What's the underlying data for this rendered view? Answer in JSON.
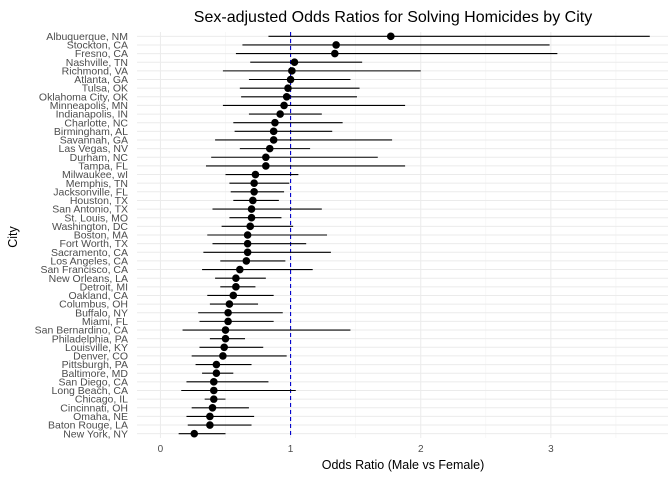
{
  "chart_data": {
    "type": "scatter",
    "subtype": "point-range (forest plot)",
    "title": "Sex-adjusted Odds Ratios for Solving Homicides by City",
    "xlabel": "Odds Ratio (Male vs Female)",
    "ylabel": "City",
    "xlim": [
      -0.18,
      3.9
    ],
    "xticks": [
      0,
      1,
      2,
      3
    ],
    "reference_line": {
      "x": 1,
      "color": "#0000cc",
      "style": "dashed"
    },
    "grid": true,
    "legend": "none",
    "cities": [
      {
        "city": "Albuquerque, NM",
        "or": 1.77,
        "lo": 0.83,
        "hi": 3.76
      },
      {
        "city": "Stockton, CA",
        "or": 1.35,
        "lo": 0.63,
        "hi": 2.99
      },
      {
        "city": "Fresno, CA",
        "or": 1.34,
        "lo": 0.58,
        "hi": 3.05
      },
      {
        "city": "Nashville, TN",
        "or": 1.03,
        "lo": 0.69,
        "hi": 1.55
      },
      {
        "city": "Richmond, VA",
        "or": 1.01,
        "lo": 0.48,
        "hi": 2.0
      },
      {
        "city": "Atlanta, GA",
        "or": 1.0,
        "lo": 0.68,
        "hi": 1.46
      },
      {
        "city": "Tulsa, OK",
        "or": 0.98,
        "lo": 0.61,
        "hi": 1.53
      },
      {
        "city": "Oklahoma City, OK",
        "or": 0.97,
        "lo": 0.62,
        "hi": 1.51
      },
      {
        "city": "Minneapolis, MN",
        "or": 0.95,
        "lo": 0.48,
        "hi": 1.88
      },
      {
        "city": "Indianapolis, IN",
        "or": 0.92,
        "lo": 0.68,
        "hi": 1.24
      },
      {
        "city": "Charlotte, NC",
        "or": 0.88,
        "lo": 0.56,
        "hi": 1.4
      },
      {
        "city": "Birmingham, AL",
        "or": 0.87,
        "lo": 0.57,
        "hi": 1.32
      },
      {
        "city": "Savannah, GA",
        "or": 0.87,
        "lo": 0.42,
        "hi": 1.78
      },
      {
        "city": "Las Vegas, NV",
        "or": 0.84,
        "lo": 0.61,
        "hi": 1.15
      },
      {
        "city": "Durham, NC",
        "or": 0.81,
        "lo": 0.39,
        "hi": 1.67
      },
      {
        "city": "Tampa, FL",
        "or": 0.81,
        "lo": 0.35,
        "hi": 1.88
      },
      {
        "city": "Milwaukee, wI",
        "or": 0.73,
        "lo": 0.5,
        "hi": 1.06
      },
      {
        "city": "Memphis, TN",
        "or": 0.72,
        "lo": 0.53,
        "hi": 0.99
      },
      {
        "city": "Jacksonville, FL",
        "or": 0.72,
        "lo": 0.54,
        "hi": 0.95
      },
      {
        "city": "Houston, TX",
        "or": 0.71,
        "lo": 0.56,
        "hi": 0.91
      },
      {
        "city": "San Antonio, TX",
        "or": 0.7,
        "lo": 0.4,
        "hi": 1.24
      },
      {
        "city": "St. Louis, MO",
        "or": 0.7,
        "lo": 0.53,
        "hi": 0.93
      },
      {
        "city": "Washington, DC",
        "or": 0.69,
        "lo": 0.47,
        "hi": 1.02
      },
      {
        "city": "Boston, MA",
        "or": 0.67,
        "lo": 0.36,
        "hi": 1.28
      },
      {
        "city": "Fort Worth, TX",
        "or": 0.67,
        "lo": 0.4,
        "hi": 1.12
      },
      {
        "city": "Sacramento, CA",
        "or": 0.67,
        "lo": 0.33,
        "hi": 1.31
      },
      {
        "city": "Los Angeles, CA",
        "or": 0.66,
        "lo": 0.46,
        "hi": 0.96
      },
      {
        "city": "San Francisco, CA",
        "or": 0.61,
        "lo": 0.32,
        "hi": 1.17
      },
      {
        "city": "New Orleans, LA",
        "or": 0.58,
        "lo": 0.42,
        "hi": 0.81
      },
      {
        "city": "Detroit, MI",
        "or": 0.58,
        "lo": 0.46,
        "hi": 0.73
      },
      {
        "city": "Oakland, CA",
        "or": 0.56,
        "lo": 0.36,
        "hi": 0.87
      },
      {
        "city": "Columbus, OH",
        "or": 0.53,
        "lo": 0.38,
        "hi": 0.75
      },
      {
        "city": "Buffalo, NY",
        "or": 0.52,
        "lo": 0.29,
        "hi": 0.94
      },
      {
        "city": "Miami, FL",
        "or": 0.52,
        "lo": 0.3,
        "hi": 0.87
      },
      {
        "city": "San Bernardino, CA",
        "or": 0.5,
        "lo": 0.17,
        "hi": 1.46
      },
      {
        "city": "Philadelphia, PA",
        "or": 0.5,
        "lo": 0.38,
        "hi": 0.65
      },
      {
        "city": "Louisville, KY",
        "or": 0.49,
        "lo": 0.3,
        "hi": 0.79
      },
      {
        "city": "Denver, CO",
        "or": 0.48,
        "lo": 0.24,
        "hi": 0.97
      },
      {
        "city": "Pittsburgh, PA",
        "or": 0.43,
        "lo": 0.27,
        "hi": 0.7
      },
      {
        "city": "Baltimore, MD",
        "or": 0.43,
        "lo": 0.32,
        "hi": 0.56
      },
      {
        "city": "San Diego, CA",
        "or": 0.41,
        "lo": 0.2,
        "hi": 0.83
      },
      {
        "city": "Long Beach, CA",
        "or": 0.41,
        "lo": 0.16,
        "hi": 1.04
      },
      {
        "city": "Chicago, IL",
        "or": 0.41,
        "lo": 0.34,
        "hi": 0.5
      },
      {
        "city": "Cincinnati, OH",
        "or": 0.4,
        "lo": 0.24,
        "hi": 0.68
      },
      {
        "city": "Omaha, NE",
        "or": 0.38,
        "lo": 0.2,
        "hi": 0.72
      },
      {
        "city": "Baton Rouge, LA",
        "or": 0.38,
        "lo": 0.21,
        "hi": 0.7
      },
      {
        "city": "New York, NY",
        "or": 0.26,
        "lo": 0.14,
        "hi": 0.5
      }
    ]
  }
}
